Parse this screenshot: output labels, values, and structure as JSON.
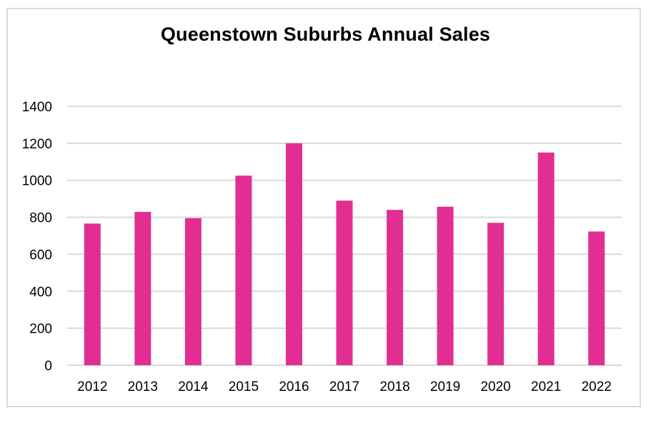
{
  "chart_data": {
    "type": "bar",
    "title": "Queenstown Suburbs Annual Sales",
    "xlabel": "",
    "ylabel": "",
    "categories": [
      "2012",
      "2013",
      "2014",
      "2015",
      "2016",
      "2017",
      "2018",
      "2019",
      "2020",
      "2021",
      "2022"
    ],
    "values": [
      766,
      829,
      795,
      1025,
      1200,
      890,
      840,
      857,
      770,
      1150,
      723
    ],
    "ylim": [
      0,
      1400
    ],
    "yticks": [
      0,
      200,
      400,
      600,
      800,
      1000,
      1200,
      1400
    ],
    "grid": true,
    "bar_color": "#e22e92",
    "grid_color": "#d9d9d9"
  }
}
